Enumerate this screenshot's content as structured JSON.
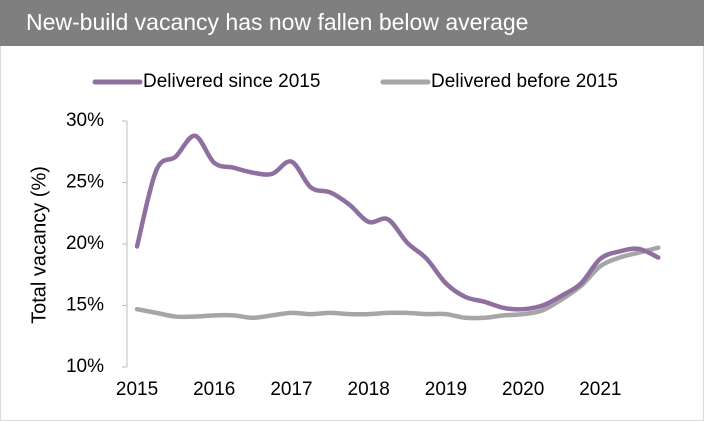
{
  "chart_data": {
    "type": "line",
    "title": "New-build vacancy has now fallen below average",
    "y_label": "Total vacancy (%)",
    "x": [
      2015,
      2015.25,
      2015.5,
      2015.75,
      2016,
      2016.25,
      2016.5,
      2016.75,
      2017,
      2017.25,
      2017.5,
      2017.75,
      2018,
      2018.25,
      2018.5,
      2018.75,
      2019,
      2019.25,
      2019.5,
      2019.75,
      2020,
      2020.25,
      2020.5,
      2020.75,
      2021,
      2021.25,
      2021.5,
      2021.75
    ],
    "series": [
      {
        "name": "Delivered since 2015",
        "color": "#8e6fa0",
        "values": [
          19.8,
          26.0,
          27.1,
          28.8,
          26.6,
          26.2,
          25.8,
          25.7,
          26.7,
          24.6,
          24.2,
          23.2,
          21.8,
          22.0,
          20.1,
          18.8,
          16.8,
          15.7,
          15.3,
          14.8,
          14.7,
          15.0,
          15.8,
          16.8,
          18.8,
          19.4,
          19.6,
          18.9
        ]
      },
      {
        "name": "Delivered before 2015",
        "color": "#a6a6a6",
        "values": [
          14.7,
          14.4,
          14.1,
          14.1,
          14.2,
          14.2,
          14.0,
          14.2,
          14.4,
          14.3,
          14.4,
          14.3,
          14.3,
          14.4,
          14.4,
          14.3,
          14.3,
          14.0,
          14.0,
          14.2,
          14.3,
          14.6,
          15.5,
          16.6,
          18.2,
          18.9,
          19.3,
          19.7
        ]
      }
    ],
    "xlim": [
      2014.87,
      2021.85
    ],
    "xticks": [
      2015,
      2016,
      2017,
      2018,
      2019,
      2020,
      2021
    ],
    "ylim": [
      10,
      30
    ],
    "yticks": [
      {
        "value": 10,
        "label": "10%"
      },
      {
        "value": 15,
        "label": "15%"
      },
      {
        "value": 20,
        "label": "20%"
      },
      {
        "value": 25,
        "label": "25%"
      },
      {
        "value": 30,
        "label": "30%"
      }
    ],
    "legend": "top"
  }
}
